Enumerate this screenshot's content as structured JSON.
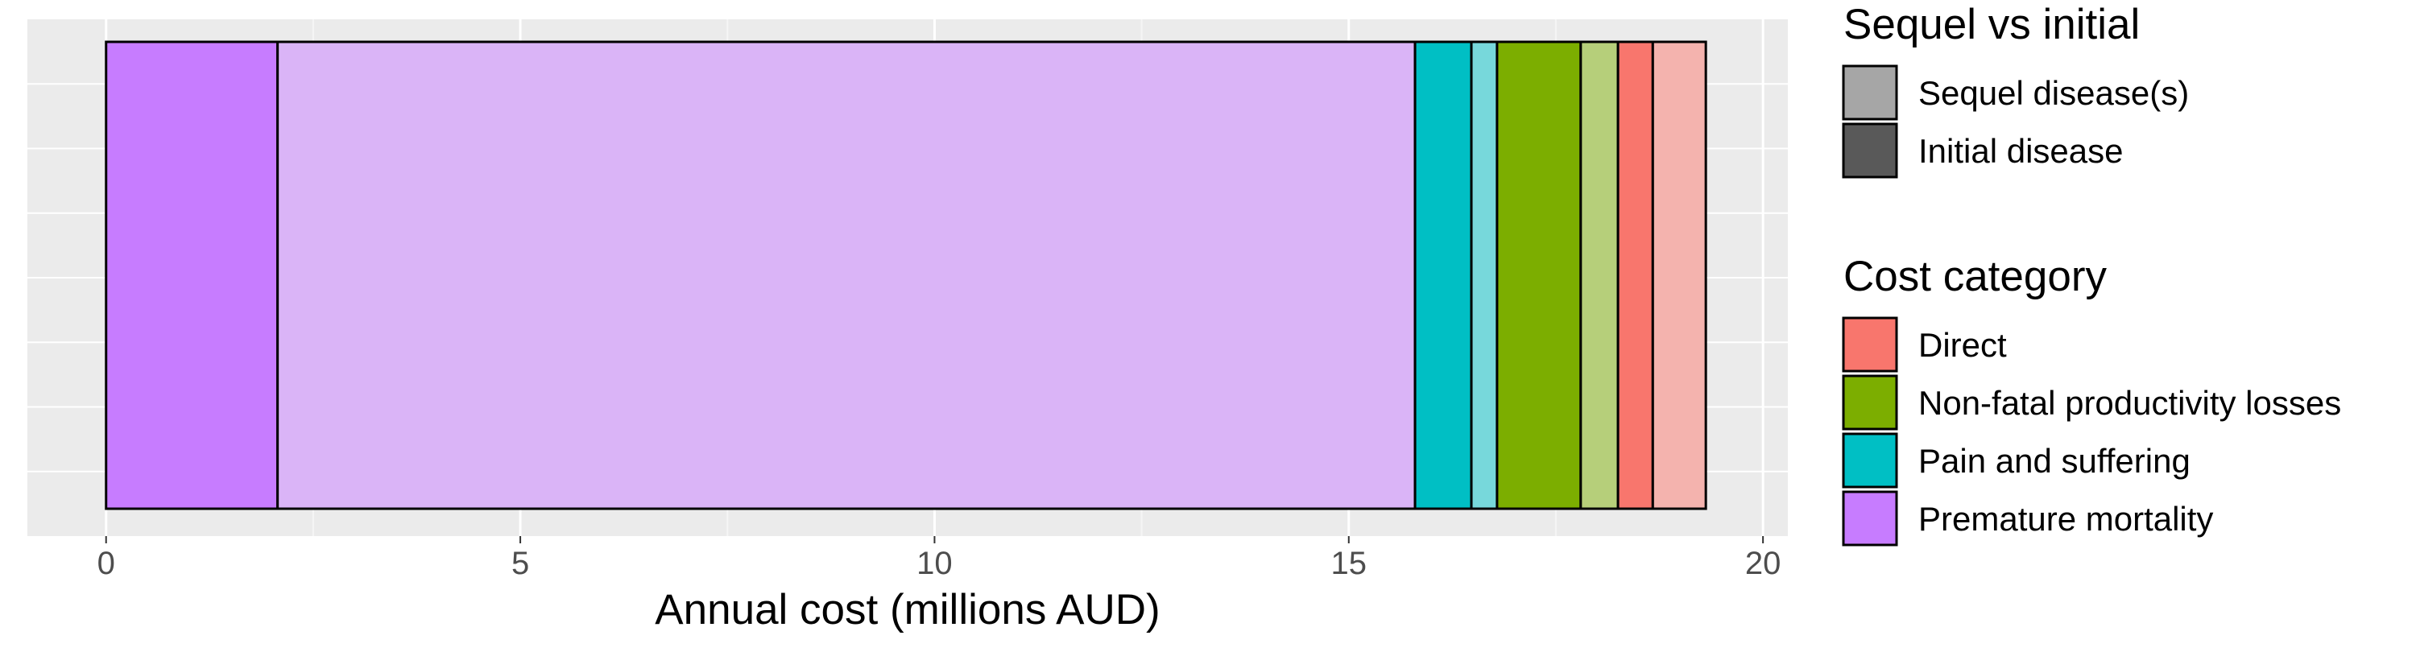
{
  "chart_data": {
    "type": "bar",
    "orientation": "horizontal",
    "stacked": true,
    "xlabel": "Annual cost (millions AUD)",
    "ylabel": "",
    "xlim": [
      -0.95,
      20.3
    ],
    "xticks": [
      0,
      5,
      10,
      15,
      20
    ],
    "xtick_labels": [
      "0",
      "5",
      "10",
      "15",
      "20"
    ],
    "grid": true,
    "legend_position": "right",
    "segments": [
      {
        "cost_category": "Premature mortality",
        "sequel_vs_initial": "Initial disease",
        "value": 2.07,
        "color": "#C77CFF"
      },
      {
        "cost_category": "Premature mortality",
        "sequel_vs_initial": "Sequel disease(s)",
        "value": 13.73,
        "color": "#DAB4F7"
      },
      {
        "cost_category": "Pain and suffering",
        "sequel_vs_initial": "Initial disease",
        "value": 0.68,
        "color": "#00BFC4"
      },
      {
        "cost_category": "Pain and suffering",
        "sequel_vs_initial": "Sequel disease(s)",
        "value": 0.31,
        "color": "#77D8DB"
      },
      {
        "cost_category": "Non-fatal productivity losses",
        "sequel_vs_initial": "Initial disease",
        "value": 1.01,
        "color": "#7CAE00"
      },
      {
        "cost_category": "Non-fatal productivity losses",
        "sequel_vs_initial": "Sequel disease(s)",
        "value": 0.45,
        "color": "#B6CF7A"
      },
      {
        "cost_category": "Direct",
        "sequel_vs_initial": "Initial disease",
        "value": 0.42,
        "color": "#F8766D"
      },
      {
        "cost_category": "Direct",
        "sequel_vs_initial": "Sequel disease(s)",
        "value": 0.64,
        "color": "#F4B3AE"
      }
    ],
    "legends": [
      {
        "title": "Sequel vs initial",
        "items": [
          {
            "label": "Sequel disease(s)",
            "color": "#A6A6A6"
          },
          {
            "label": "Initial disease",
            "color": "#595959"
          }
        ]
      },
      {
        "title": "Cost category",
        "items": [
          {
            "label": "Direct",
            "color": "#F8766D"
          },
          {
            "label": "Non-fatal productivity losses",
            "color": "#7CAE00"
          },
          {
            "label": "Pain and suffering",
            "color": "#00BFC4"
          },
          {
            "label": "Premature mortality",
            "color": "#C77CFF"
          }
        ]
      }
    ]
  }
}
